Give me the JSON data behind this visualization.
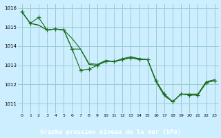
{
  "xlabel": "Graphe pression niveau de la mer (hPa)",
  "xlim": [
    -0.5,
    23.5
  ],
  "ylim": [
    1010.5,
    1016.2
  ],
  "yticks": [
    1011,
    1012,
    1013,
    1014,
    1015,
    1016
  ],
  "xticks": [
    0,
    1,
    2,
    3,
    4,
    5,
    6,
    7,
    8,
    9,
    10,
    11,
    12,
    13,
    14,
    15,
    16,
    17,
    18,
    19,
    20,
    21,
    22,
    23
  ],
  "bg_color": "#cceeff",
  "grid_color": "#99cccc",
  "line_color": "#1a6b1a",
  "label_bg": "#2d6b2d",
  "series1": [
    1015.8,
    1015.2,
    1015.5,
    1014.85,
    1014.9,
    1014.85,
    1013.85,
    1012.75,
    1012.8,
    1013.0,
    1013.2,
    1013.2,
    1013.3,
    1013.4,
    1013.3,
    1013.3,
    1012.2,
    1011.5,
    1011.1,
    1011.5,
    1011.45,
    1011.45,
    1012.1,
    1012.2
  ],
  "series2": [
    1015.8,
    1015.2,
    1015.1,
    1014.85,
    1014.9,
    1014.85,
    1013.85,
    1013.85,
    1013.1,
    1013.05,
    1013.25,
    1013.2,
    1013.35,
    1013.45,
    1013.35,
    1013.3,
    1012.15,
    1011.4,
    1011.1,
    1011.5,
    1011.45,
    1011.45,
    1012.1,
    1012.2
  ],
  "series3": [
    1015.8,
    1015.2,
    1015.1,
    1014.85,
    1014.9,
    1014.85,
    1014.4,
    1013.85,
    1013.05,
    1013.0,
    1013.25,
    1013.2,
    1013.3,
    1013.4,
    1013.35,
    1013.3,
    1012.2,
    1011.45,
    1011.1,
    1011.5,
    1011.5,
    1011.5,
    1012.15,
    1012.25
  ]
}
